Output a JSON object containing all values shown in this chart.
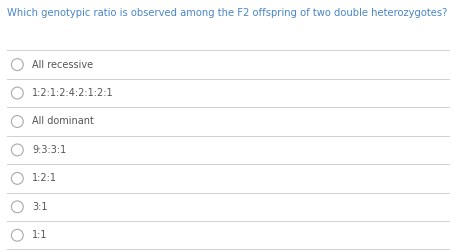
{
  "background_color": "#ffffff",
  "question": "Which genotypic ratio is observed among the F2 offspring of two double heterozygotes?",
  "question_color": "#4a86c8",
  "options": [
    "All recessive",
    "1:2:1:2:4:2:1:2:1",
    "All dominant",
    "9:3:3:1",
    "1:2:1",
    "3:1",
    "1:1"
  ],
  "option_color": "#555555",
  "circle_color": "#aaaaaa",
  "divider_color": "#d0d0d0",
  "question_fontsize": 7.2,
  "option_fontsize": 7.0,
  "fig_width": 4.56,
  "fig_height": 2.52
}
